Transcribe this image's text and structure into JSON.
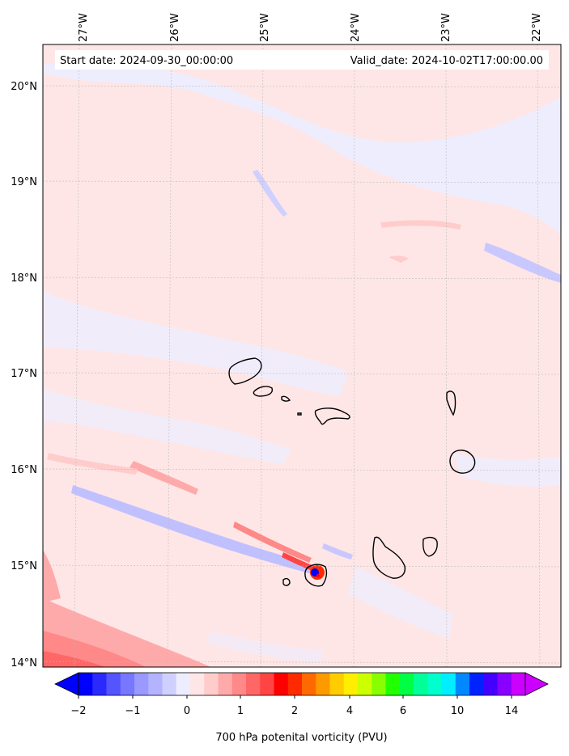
{
  "map": {
    "start_date_label": "Start date: 2024-09-30_00:00:00",
    "valid_date_label": "Valid_date: 2024-10-02T17:00:00.00",
    "lon_labels": [
      "27°W",
      "26°W",
      "25°W",
      "24°W",
      "23°W",
      "22°W"
    ],
    "lat_labels": [
      "20°N",
      "19°N",
      "18°N",
      "17°N",
      "16°N",
      "15°N",
      "14°N"
    ],
    "extent": {
      "lon_min": -27.4,
      "lon_max": -21.8,
      "lat_min": 13.95,
      "lat_max": 20.4
    },
    "background_field_color": "#ffe6e6",
    "negative_field_color": "#ededff",
    "coastline_color": "#000000"
  },
  "colorbar": {
    "label": "700 hPa potenital vorticity (PVU)",
    "tick_labels": [
      "−2",
      "−1",
      "0",
      "1",
      "2",
      "4",
      "6",
      "10",
      "14"
    ],
    "colors": [
      "#0000ff",
      "#2a2aff",
      "#5555ff",
      "#7777ff",
      "#9999ff",
      "#b3b3ff",
      "#d0d0ff",
      "#ededff",
      "#ffe6e6",
      "#ffcccc",
      "#ffaaaa",
      "#ff8888",
      "#ff6666",
      "#ff4444",
      "#ff0000",
      "#ff2a00",
      "#ff6a00",
      "#ff9900",
      "#ffcc00",
      "#ffee00",
      "#ccff00",
      "#88ff00",
      "#22ff00",
      "#00ff44",
      "#00ff99",
      "#00ffcc",
      "#00eeff",
      "#0088ff",
      "#0022ff",
      "#4400ff",
      "#8800ff",
      "#cc00ff"
    ]
  }
}
